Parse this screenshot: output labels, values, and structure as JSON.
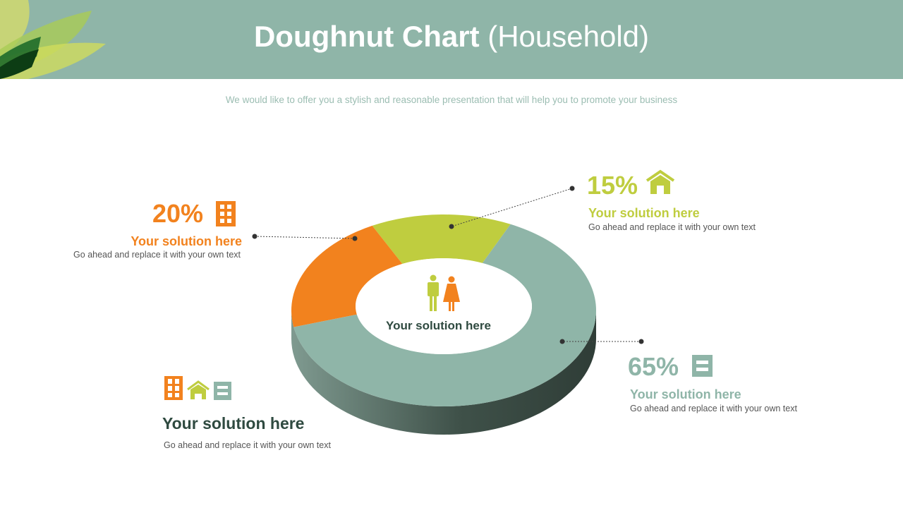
{
  "header": {
    "title_bold": "Doughnut Chart",
    "title_light": "(Household)"
  },
  "subtitle": "We would like to offer you a stylish and reasonable presentation that will help you to promote your business",
  "colors": {
    "teal": "#8fb5a8",
    "orange": "#f2821e",
    "green": "#bfcd3f",
    "dark": "#2f4a40"
  },
  "chart_data": {
    "type": "pie",
    "variant": "3d-doughnut",
    "center_label": "Your solution here",
    "slices": [
      {
        "label": "15%",
        "value": 15,
        "color": "#bfcd3f"
      },
      {
        "label": "20%",
        "value": 20,
        "color": "#f2821e"
      },
      {
        "label": "65%",
        "value": 65,
        "color": "#8fb5a8"
      }
    ]
  },
  "callouts": [
    {
      "pct": "20%",
      "heading": "Your solution  here",
      "text": "Go ahead and replace it with your own text",
      "icon": "building-icon"
    },
    {
      "pct": "15%",
      "heading": "Your solution  here",
      "text": "Go ahead and replace it with your own text",
      "icon": "house-icon"
    },
    {
      "pct": "65%",
      "heading": "Your solution  here",
      "text": "Go ahead and replace it with your own text",
      "icon": "cabinet-icon"
    }
  ],
  "summary": {
    "heading": "Your solution here",
    "text": "Go ahead and replace it with your own text"
  }
}
